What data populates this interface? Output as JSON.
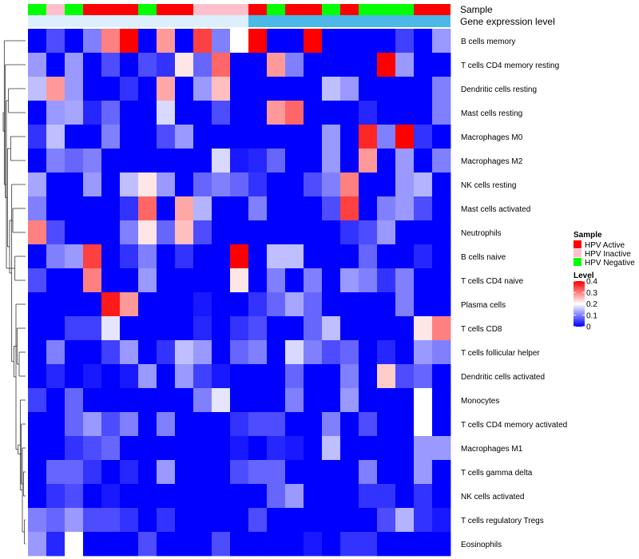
{
  "chart_data": {
    "type": "heatmap",
    "title": "",
    "xlabel": "",
    "ylabel": "",
    "annotation_labels": {
      "sample": "Sample",
      "gene_expression": "Gene expression level"
    },
    "rows": [
      "B cells memory",
      "T cells CD4 memory resting",
      "Dendritic cells resting",
      "Mast cells resting",
      "Macrophages M0",
      "Macrophages M2",
      "NK cells resting",
      "Mast cells activated",
      "Neutrophils",
      "B cells naive",
      "T cells CD4 naive",
      "Plasma cells",
      "T cells CD8",
      "T cells follicular helper",
      "Dendritic cells activated",
      "Monocytes",
      "T cells CD4 memory activated",
      "Macrophages M1",
      "T cells gamma delta",
      "NK cells activated",
      "T cells regulatory  Tregs",
      "Eosinophils"
    ],
    "sample_groups": [
      "HPV Negative",
      "HPV Inactive",
      "HPV Negative",
      "HPV Active",
      "HPV Active",
      "HPV Active",
      "HPV Negative",
      "HPV Active",
      "HPV Active",
      "HPV Inactive",
      "HPV Inactive",
      "HPV Inactive",
      "HPV Active",
      "HPV Negative",
      "HPV Active",
      "HPV Active",
      "HPV Negative",
      "HPV Active",
      "HPV Negative",
      "HPV Negative",
      "HPV Negative",
      "HPV Active",
      "HPV Active"
    ],
    "gene_expression_strip": [
      0.08,
      0.08,
      0.08,
      0.08,
      0.08,
      0.08,
      0.08,
      0.08,
      0.08,
      0.08,
      0.08,
      0.08,
      0.12,
      0.12,
      0.12,
      0.12,
      0.12,
      0.12,
      0.12,
      0.12,
      0.12,
      0.12,
      0.12
    ],
    "values": [
      [
        0.0,
        0.06,
        0.0,
        0.1,
        0.3,
        0.4,
        0.0,
        0.28,
        0.0,
        0.35,
        0.1,
        0.2,
        0.4,
        0.0,
        0.0,
        0.4,
        0.0,
        0.0,
        0.0,
        0.0,
        0.05,
        0.0,
        0.12
      ],
      [
        0.12,
        0.0,
        0.12,
        0.0,
        0.06,
        0.0,
        0.06,
        0.04,
        0.22,
        0.08,
        0.32,
        0.0,
        0.0,
        0.28,
        0.1,
        0.0,
        0.0,
        0.0,
        0.0,
        0.4,
        0.12,
        0.0,
        0.0
      ],
      [
        0.15,
        0.28,
        0.12,
        0.0,
        0.0,
        0.04,
        0.0,
        0.27,
        0.0,
        0.12,
        0.25,
        0.0,
        0.0,
        0.0,
        0.0,
        0.0,
        0.15,
        0.12,
        0.0,
        0.0,
        0.0,
        0.0,
        0.1
      ],
      [
        0.0,
        0.12,
        0.13,
        0.03,
        0.08,
        0.0,
        0.0,
        0.17,
        0.0,
        0.0,
        0.06,
        0.0,
        0.0,
        0.28,
        0.32,
        0.0,
        0.0,
        0.0,
        0.03,
        0.0,
        0.0,
        0.0,
        0.1
      ],
      [
        0.04,
        0.15,
        0.0,
        0.0,
        0.1,
        0.0,
        0.0,
        0.06,
        0.12,
        0.0,
        0.0,
        0.0,
        0.0,
        0.0,
        0.0,
        0.0,
        0.12,
        0.0,
        0.37,
        0.1,
        0.4,
        0.04,
        0.0
      ],
      [
        0.0,
        0.1,
        0.08,
        0.1,
        0.0,
        0.0,
        0.0,
        0.0,
        0.0,
        0.0,
        0.17,
        0.02,
        0.03,
        0.08,
        0.0,
        0.0,
        0.12,
        0.0,
        0.28,
        0.0,
        0.12,
        0.0,
        0.1
      ],
      [
        0.13,
        0.0,
        0.0,
        0.12,
        0.0,
        0.15,
        0.22,
        0.12,
        0.0,
        0.08,
        0.1,
        0.08,
        0.04,
        0.0,
        0.0,
        0.06,
        0.1,
        0.3,
        0.0,
        0.0,
        0.12,
        0.14,
        0.0
      ],
      [
        0.1,
        0.0,
        0.0,
        0.0,
        0.0,
        0.04,
        0.32,
        0.0,
        0.27,
        0.14,
        0.0,
        0.0,
        0.1,
        0.0,
        0.0,
        0.0,
        0.06,
        0.35,
        0.0,
        0.1,
        0.12,
        0.06,
        0.0
      ],
      [
        0.3,
        0.06,
        0.0,
        0.0,
        0.0,
        0.1,
        0.22,
        0.08,
        0.25,
        0.06,
        0.0,
        0.0,
        0.0,
        0.0,
        0.0,
        0.0,
        0.0,
        0.04,
        0.06,
        0.12,
        0.0,
        0.0,
        0.0
      ],
      [
        0.0,
        0.1,
        0.12,
        0.35,
        0.0,
        0.04,
        0.1,
        0.0,
        0.04,
        0.0,
        0.0,
        0.4,
        0.0,
        0.15,
        0.15,
        0.0,
        0.0,
        0.0,
        0.08,
        0.0,
        0.0,
        0.03,
        0.0
      ],
      [
        0.06,
        0.0,
        0.0,
        0.3,
        0.0,
        0.0,
        0.12,
        0.0,
        0.0,
        0.0,
        0.0,
        0.22,
        0.0,
        0.1,
        0.0,
        0.1,
        0.0,
        0.12,
        0.1,
        0.04,
        0.1,
        0.0,
        0.0
      ],
      [
        0.0,
        0.0,
        0.0,
        0.0,
        0.38,
        0.28,
        0.0,
        0.0,
        0.0,
        0.02,
        0.0,
        0.0,
        0.04,
        0.08,
        0.13,
        0.08,
        0.0,
        0.0,
        0.0,
        0.0,
        0.1,
        0.0,
        0.0
      ],
      [
        0.0,
        0.0,
        0.05,
        0.05,
        0.18,
        0.0,
        0.0,
        0.0,
        0.0,
        0.03,
        0.0,
        0.04,
        0.06,
        0.0,
        0.0,
        0.08,
        0.15,
        0.0,
        0.0,
        0.0,
        0.0,
        0.22,
        0.3
      ],
      [
        0.0,
        0.1,
        0.0,
        0.0,
        0.05,
        0.12,
        0.0,
        0.04,
        0.15,
        0.12,
        0.0,
        0.08,
        0.1,
        0.0,
        0.17,
        0.1,
        0.06,
        0.08,
        0.0,
        0.03,
        0.0,
        0.12,
        0.1
      ],
      [
        0.0,
        0.03,
        0.0,
        0.02,
        0.0,
        0.02,
        0.12,
        0.0,
        0.12,
        0.05,
        0.02,
        0.0,
        0.0,
        0.0,
        0.08,
        0.0,
        0.0,
        0.1,
        0.0,
        0.24,
        0.06,
        0.08,
        0.0
      ],
      [
        0.05,
        0.0,
        0.08,
        0.0,
        0.0,
        0.0,
        0.0,
        0.0,
        0.0,
        0.1,
        0.18,
        0.0,
        0.0,
        0.0,
        0.1,
        0.0,
        0.0,
        0.12,
        0.0,
        0.0,
        0.0,
        0.2,
        0.0
      ],
      [
        0.0,
        0.0,
        0.08,
        0.12,
        0.06,
        0.1,
        0.0,
        0.1,
        0.0,
        0.0,
        0.0,
        0.04,
        0.06,
        0.06,
        0.0,
        0.0,
        0.1,
        0.0,
        0.06,
        0.0,
        0.0,
        0.2,
        0.0
      ],
      [
        0.0,
        0.0,
        0.04,
        0.06,
        0.08,
        0.0,
        0.0,
        0.0,
        0.0,
        0.0,
        0.0,
        0.02,
        0.0,
        0.03,
        0.02,
        0.0,
        0.15,
        0.0,
        0.0,
        0.0,
        0.0,
        0.12,
        0.12
      ],
      [
        0.0,
        0.08,
        0.08,
        0.04,
        0.0,
        0.03,
        0.0,
        0.12,
        0.0,
        0.0,
        0.0,
        0.06,
        0.08,
        0.08,
        0.0,
        0.0,
        0.0,
        0.0,
        0.1,
        0.0,
        0.0,
        0.12,
        0.0
      ],
      [
        0.0,
        0.04,
        0.06,
        0.0,
        0.02,
        0.0,
        0.0,
        0.0,
        0.0,
        0.0,
        0.0,
        0.0,
        0.0,
        0.08,
        0.12,
        0.0,
        0.0,
        0.0,
        0.04,
        0.04,
        0.0,
        0.04,
        0.0
      ],
      [
        0.1,
        0.08,
        0.12,
        0.06,
        0.06,
        0.04,
        0.0,
        0.04,
        0.0,
        0.0,
        0.0,
        0.0,
        0.06,
        0.0,
        0.0,
        0.0,
        0.0,
        0.0,
        0.0,
        0.06,
        0.14,
        0.04,
        0.02
      ],
      [
        0.12,
        0.03,
        0.2,
        0.0,
        0.0,
        0.0,
        0.06,
        0.0,
        0.0,
        0.0,
        0.06,
        0.0,
        0.0,
        0.0,
        0.0,
        0.02,
        0.0,
        0.04,
        0.04,
        0.0,
        0.0,
        0.0,
        0.0
      ]
    ],
    "color_scale": {
      "min": 0,
      "max": 0.4,
      "low": "#0000ff",
      "mid": "#ffffff",
      "high": "#ff0000",
      "midpoint": 0.2
    },
    "legend": {
      "sample_title": "Sample",
      "groups": [
        {
          "name": "HPV Active",
          "color": "#ff0000"
        },
        {
          "name": "HPV Inactive",
          "color": "#ffc0cb"
        },
        {
          "name": "HPV Negative",
          "color": "#00ff00"
        }
      ],
      "level_title": "Level",
      "level_ticks": [
        {
          "value": 0.4,
          "label": "0.4"
        },
        {
          "value": 0.3,
          "label": "0.3"
        },
        {
          "value": 0.2,
          "label": "0.2"
        },
        {
          "value": 0.1,
          "label": "0.1"
        },
        {
          "value": 0,
          "label": "0"
        }
      ],
      "gene_expression_low": "#ddeeff",
      "gene_expression_high": "#4cb8e8"
    },
    "row_dendrogram": [
      [
        20,
        21
      ],
      [
        18,
        19
      ],
      [
        22,
        17
      ],
      [
        23,
        16
      ],
      [
        24,
        15
      ],
      [
        14,
        13
      ],
      [
        25,
        26
      ],
      [
        12,
        27
      ],
      [
        11,
        28
      ],
      [
        9,
        10
      ],
      [
        29,
        30
      ],
      [
        7,
        8
      ],
      [
        6,
        32
      ],
      [
        4,
        5
      ],
      [
        33,
        34
      ],
      [
        2,
        3
      ],
      [
        35,
        36
      ],
      [
        31,
        37
      ],
      [
        1,
        38
      ],
      [
        0,
        39
      ],
      [
        40,
        41
      ]
    ]
  }
}
